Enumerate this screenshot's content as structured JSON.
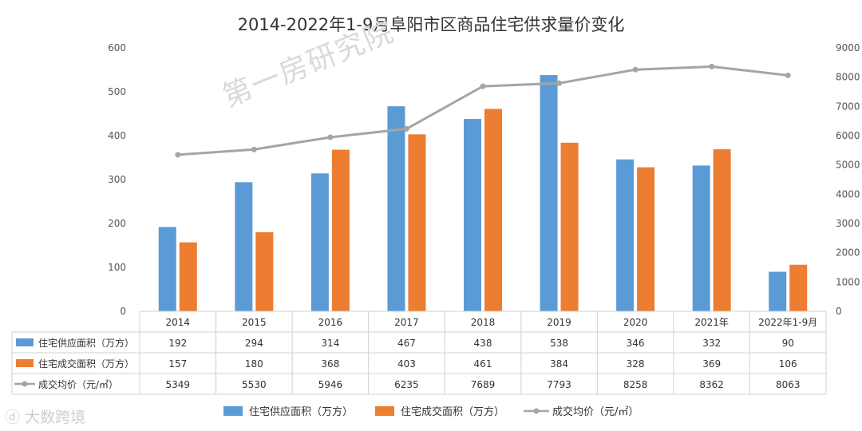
{
  "watermark": "第一房研究院",
  "logo_text": "大数跨境",
  "chart_data": {
    "type": "bar",
    "title": "2014-2022年1-9月阜阳市区商品住宅供求量价变化",
    "categories": [
      "2014",
      "2015",
      "2016",
      "2017",
      "2018",
      "2019",
      "2020",
      "2021年",
      "2022年1-9月"
    ],
    "series": [
      {
        "name": "住宅供应面积（万方）",
        "type": "bar",
        "axis": "left",
        "color": "#5B9BD5",
        "values": [
          192,
          294,
          314,
          467,
          438,
          538,
          346,
          332,
          90
        ]
      },
      {
        "name": "住宅成交面积（万方）",
        "type": "bar",
        "axis": "left",
        "color": "#ED7D31",
        "values": [
          157,
          180,
          368,
          403,
          461,
          384,
          328,
          369,
          106
        ]
      },
      {
        "name": "成交均价（元/㎡）",
        "type": "line",
        "axis": "right",
        "color": "#A5A5A5",
        "values": [
          5349,
          5530,
          5946,
          6235,
          7689,
          7793,
          8258,
          8362,
          8063
        ]
      }
    ],
    "y_left": {
      "min": 0,
      "max": 600,
      "ticks": [
        0,
        100,
        200,
        300,
        400,
        500,
        600
      ]
    },
    "y_right": {
      "min": 0,
      "max": 9000,
      "ticks": [
        0,
        1000,
        2000,
        3000,
        4000,
        5000,
        6000,
        7000,
        8000,
        9000
      ]
    },
    "grid": false,
    "legend": "bottom",
    "data_table": true
  }
}
